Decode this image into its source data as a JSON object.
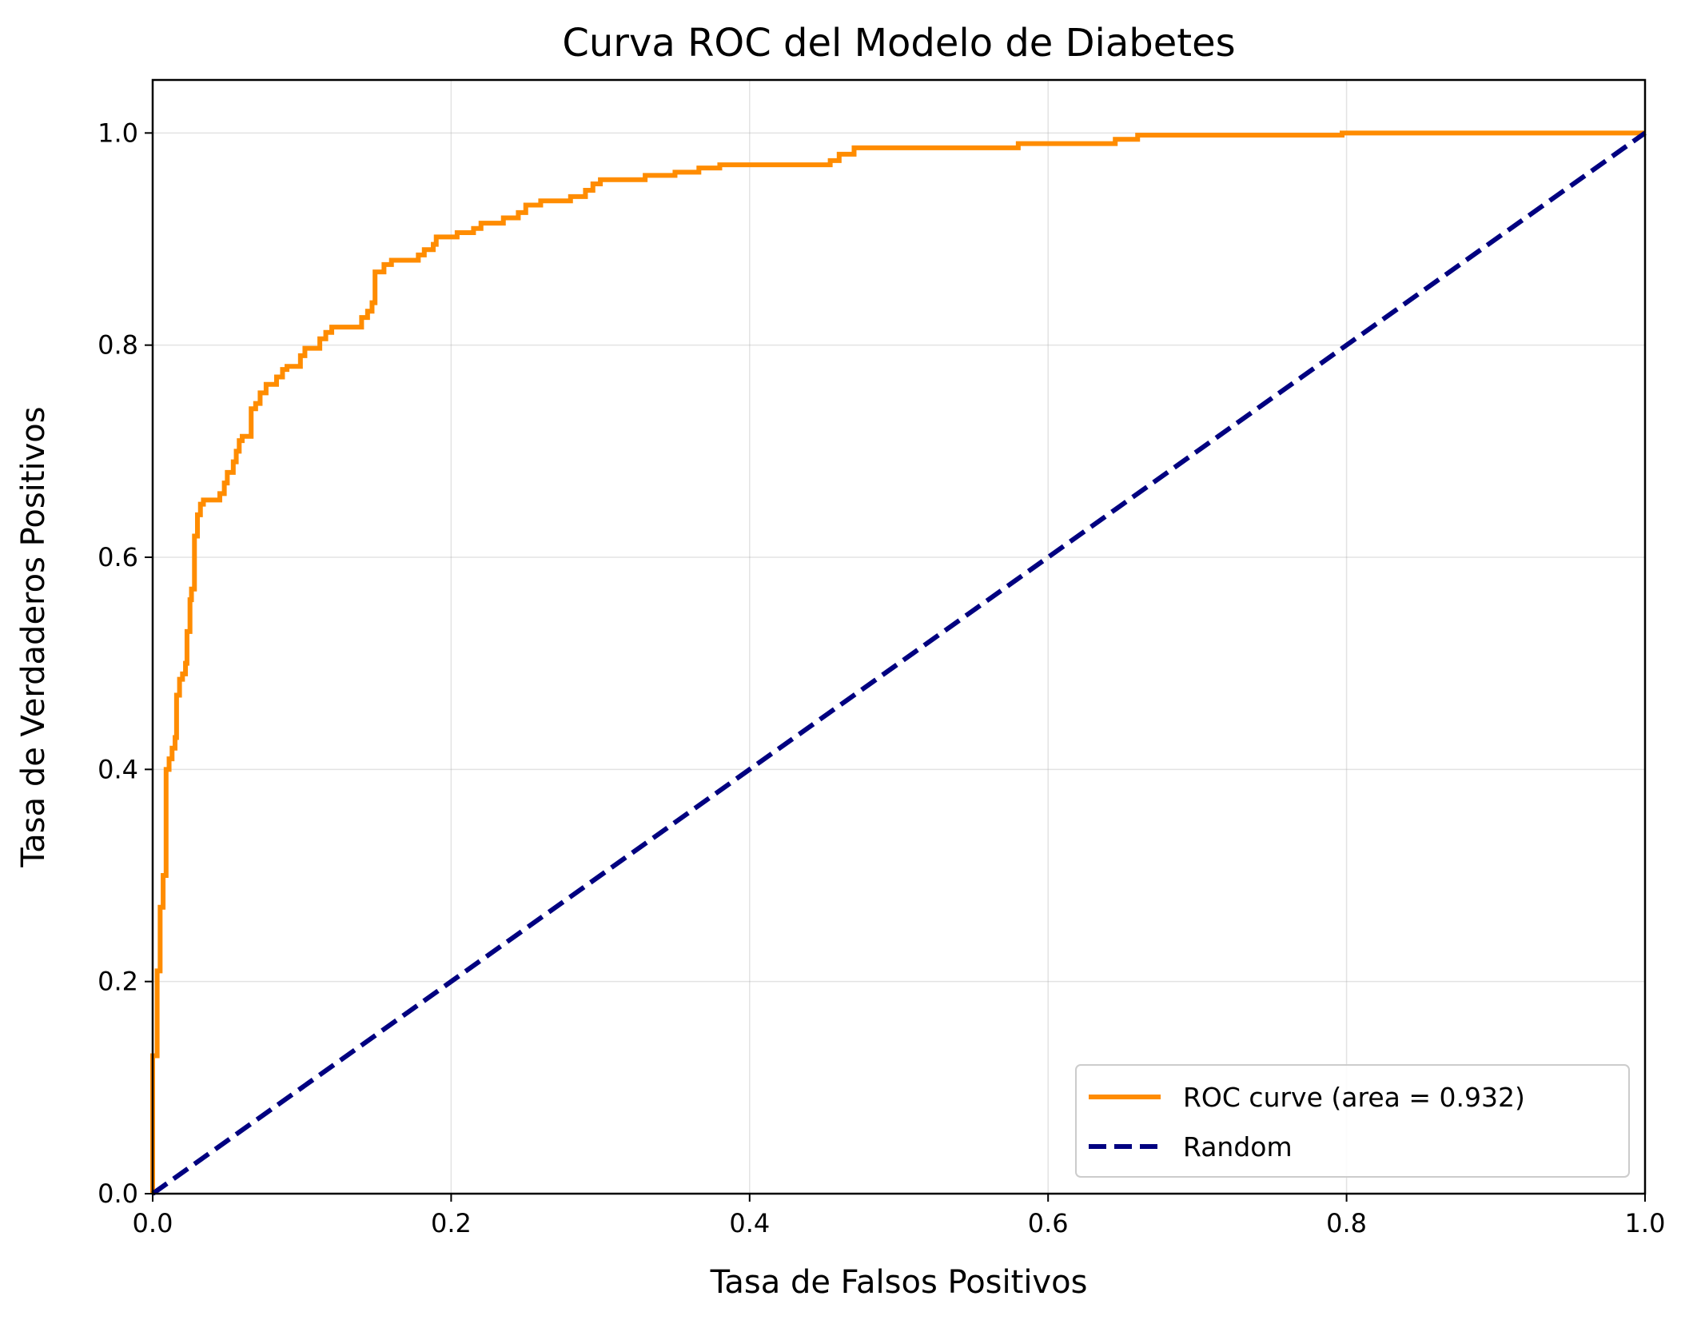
{
  "chart_data": {
    "type": "line",
    "title": "Curva ROC del Modelo de Diabetes",
    "xlabel": "Tasa de Falsos Positivos",
    "ylabel": "Tasa de Verdaderos Positivos",
    "xlim": [
      0.0,
      1.0
    ],
    "ylim": [
      0.0,
      1.05
    ],
    "xticks": [
      0.0,
      0.2,
      0.4,
      0.6,
      0.8,
      1.0
    ],
    "xtick_labels": [
      "0.0",
      "0.2",
      "0.4",
      "0.6",
      "0.8",
      "1.0"
    ],
    "yticks": [
      0.0,
      0.2,
      0.4,
      0.6,
      0.8,
      1.0
    ],
    "ytick_labels": [
      "0.0",
      "0.2",
      "0.4",
      "0.6",
      "0.8",
      "1.0"
    ],
    "grid": true,
    "legend_position": "lower-right",
    "series": [
      {
        "name": "ROC curve (area = 0.932)",
        "color": "#ff8c00",
        "style": "solid",
        "step": true,
        "points": [
          [
            0.0,
            0.0
          ],
          [
            0.0,
            0.13
          ],
          [
            0.003,
            0.13
          ],
          [
            0.003,
            0.21
          ],
          [
            0.005,
            0.21
          ],
          [
            0.005,
            0.27
          ],
          [
            0.007,
            0.27
          ],
          [
            0.007,
            0.3
          ],
          [
            0.009,
            0.3
          ],
          [
            0.009,
            0.4
          ],
          [
            0.011,
            0.4
          ],
          [
            0.011,
            0.41
          ],
          [
            0.013,
            0.41
          ],
          [
            0.013,
            0.42
          ],
          [
            0.015,
            0.42
          ],
          [
            0.015,
            0.43
          ],
          [
            0.016,
            0.43
          ],
          [
            0.016,
            0.47
          ],
          [
            0.018,
            0.47
          ],
          [
            0.018,
            0.485
          ],
          [
            0.02,
            0.485
          ],
          [
            0.02,
            0.49
          ],
          [
            0.022,
            0.49
          ],
          [
            0.022,
            0.5
          ],
          [
            0.023,
            0.5
          ],
          [
            0.023,
            0.53
          ],
          [
            0.025,
            0.53
          ],
          [
            0.025,
            0.56
          ],
          [
            0.026,
            0.56
          ],
          [
            0.026,
            0.57
          ],
          [
            0.028,
            0.57
          ],
          [
            0.028,
            0.62
          ],
          [
            0.03,
            0.62
          ],
          [
            0.03,
            0.64
          ],
          [
            0.032,
            0.64
          ],
          [
            0.032,
            0.65
          ],
          [
            0.034,
            0.65
          ],
          [
            0.034,
            0.654
          ],
          [
            0.045,
            0.654
          ],
          [
            0.045,
            0.66
          ],
          [
            0.048,
            0.66
          ],
          [
            0.048,
            0.67
          ],
          [
            0.05,
            0.67
          ],
          [
            0.05,
            0.68
          ],
          [
            0.054,
            0.68
          ],
          [
            0.054,
            0.69
          ],
          [
            0.056,
            0.69
          ],
          [
            0.056,
            0.7
          ],
          [
            0.058,
            0.7
          ],
          [
            0.058,
            0.71
          ],
          [
            0.06,
            0.71
          ],
          [
            0.06,
            0.714
          ],
          [
            0.066,
            0.714
          ],
          [
            0.066,
            0.74
          ],
          [
            0.069,
            0.74
          ],
          [
            0.069,
            0.745
          ],
          [
            0.072,
            0.745
          ],
          [
            0.072,
            0.755
          ],
          [
            0.076,
            0.755
          ],
          [
            0.076,
            0.763
          ],
          [
            0.083,
            0.763
          ],
          [
            0.083,
            0.77
          ],
          [
            0.087,
            0.77
          ],
          [
            0.087,
            0.777
          ],
          [
            0.09,
            0.777
          ],
          [
            0.09,
            0.78
          ],
          [
            0.099,
            0.78
          ],
          [
            0.099,
            0.79
          ],
          [
            0.102,
            0.79
          ],
          [
            0.102,
            0.797
          ],
          [
            0.112,
            0.797
          ],
          [
            0.112,
            0.806
          ],
          [
            0.116,
            0.806
          ],
          [
            0.116,
            0.812
          ],
          [
            0.12,
            0.812
          ],
          [
            0.12,
            0.817
          ],
          [
            0.14,
            0.817
          ],
          [
            0.14,
            0.826
          ],
          [
            0.144,
            0.826
          ],
          [
            0.144,
            0.832
          ],
          [
            0.147,
            0.832
          ],
          [
            0.147,
            0.84
          ],
          [
            0.149,
            0.84
          ],
          [
            0.149,
            0.869
          ],
          [
            0.155,
            0.869
          ],
          [
            0.155,
            0.876
          ],
          [
            0.16,
            0.876
          ],
          [
            0.16,
            0.88
          ],
          [
            0.178,
            0.88
          ],
          [
            0.178,
            0.885
          ],
          [
            0.182,
            0.885
          ],
          [
            0.182,
            0.89
          ],
          [
            0.188,
            0.89
          ],
          [
            0.188,
            0.895
          ],
          [
            0.19,
            0.895
          ],
          [
            0.19,
            0.902
          ],
          [
            0.204,
            0.902
          ],
          [
            0.204,
            0.906
          ],
          [
            0.215,
            0.906
          ],
          [
            0.215,
            0.91
          ],
          [
            0.22,
            0.91
          ],
          [
            0.22,
            0.915
          ],
          [
            0.235,
            0.915
          ],
          [
            0.235,
            0.92
          ],
          [
            0.245,
            0.92
          ],
          [
            0.245,
            0.925
          ],
          [
            0.25,
            0.925
          ],
          [
            0.25,
            0.932
          ],
          [
            0.26,
            0.932
          ],
          [
            0.26,
            0.936
          ],
          [
            0.28,
            0.936
          ],
          [
            0.28,
            0.94
          ],
          [
            0.29,
            0.94
          ],
          [
            0.29,
            0.946
          ],
          [
            0.295,
            0.946
          ],
          [
            0.295,
            0.952
          ],
          [
            0.3,
            0.952
          ],
          [
            0.3,
            0.956
          ],
          [
            0.33,
            0.956
          ],
          [
            0.33,
            0.96
          ],
          [
            0.35,
            0.96
          ],
          [
            0.35,
            0.963
          ],
          [
            0.366,
            0.963
          ],
          [
            0.366,
            0.967
          ],
          [
            0.38,
            0.967
          ],
          [
            0.38,
            0.97
          ],
          [
            0.454,
            0.97
          ],
          [
            0.454,
            0.974
          ],
          [
            0.46,
            0.974
          ],
          [
            0.46,
            0.98
          ],
          [
            0.47,
            0.98
          ],
          [
            0.47,
            0.986
          ],
          [
            0.58,
            0.986
          ],
          [
            0.58,
            0.99
          ],
          [
            0.645,
            0.99
          ],
          [
            0.645,
            0.994
          ],
          [
            0.66,
            0.994
          ],
          [
            0.66,
            0.998
          ],
          [
            0.797,
            0.998
          ],
          [
            0.797,
            1.0
          ],
          [
            1.0,
            1.0
          ]
        ]
      },
      {
        "name": "Random",
        "color": "#000080",
        "style": "dashed",
        "step": false,
        "points": [
          [
            0.0,
            0.0
          ],
          [
            1.0,
            1.0
          ]
        ]
      }
    ]
  }
}
